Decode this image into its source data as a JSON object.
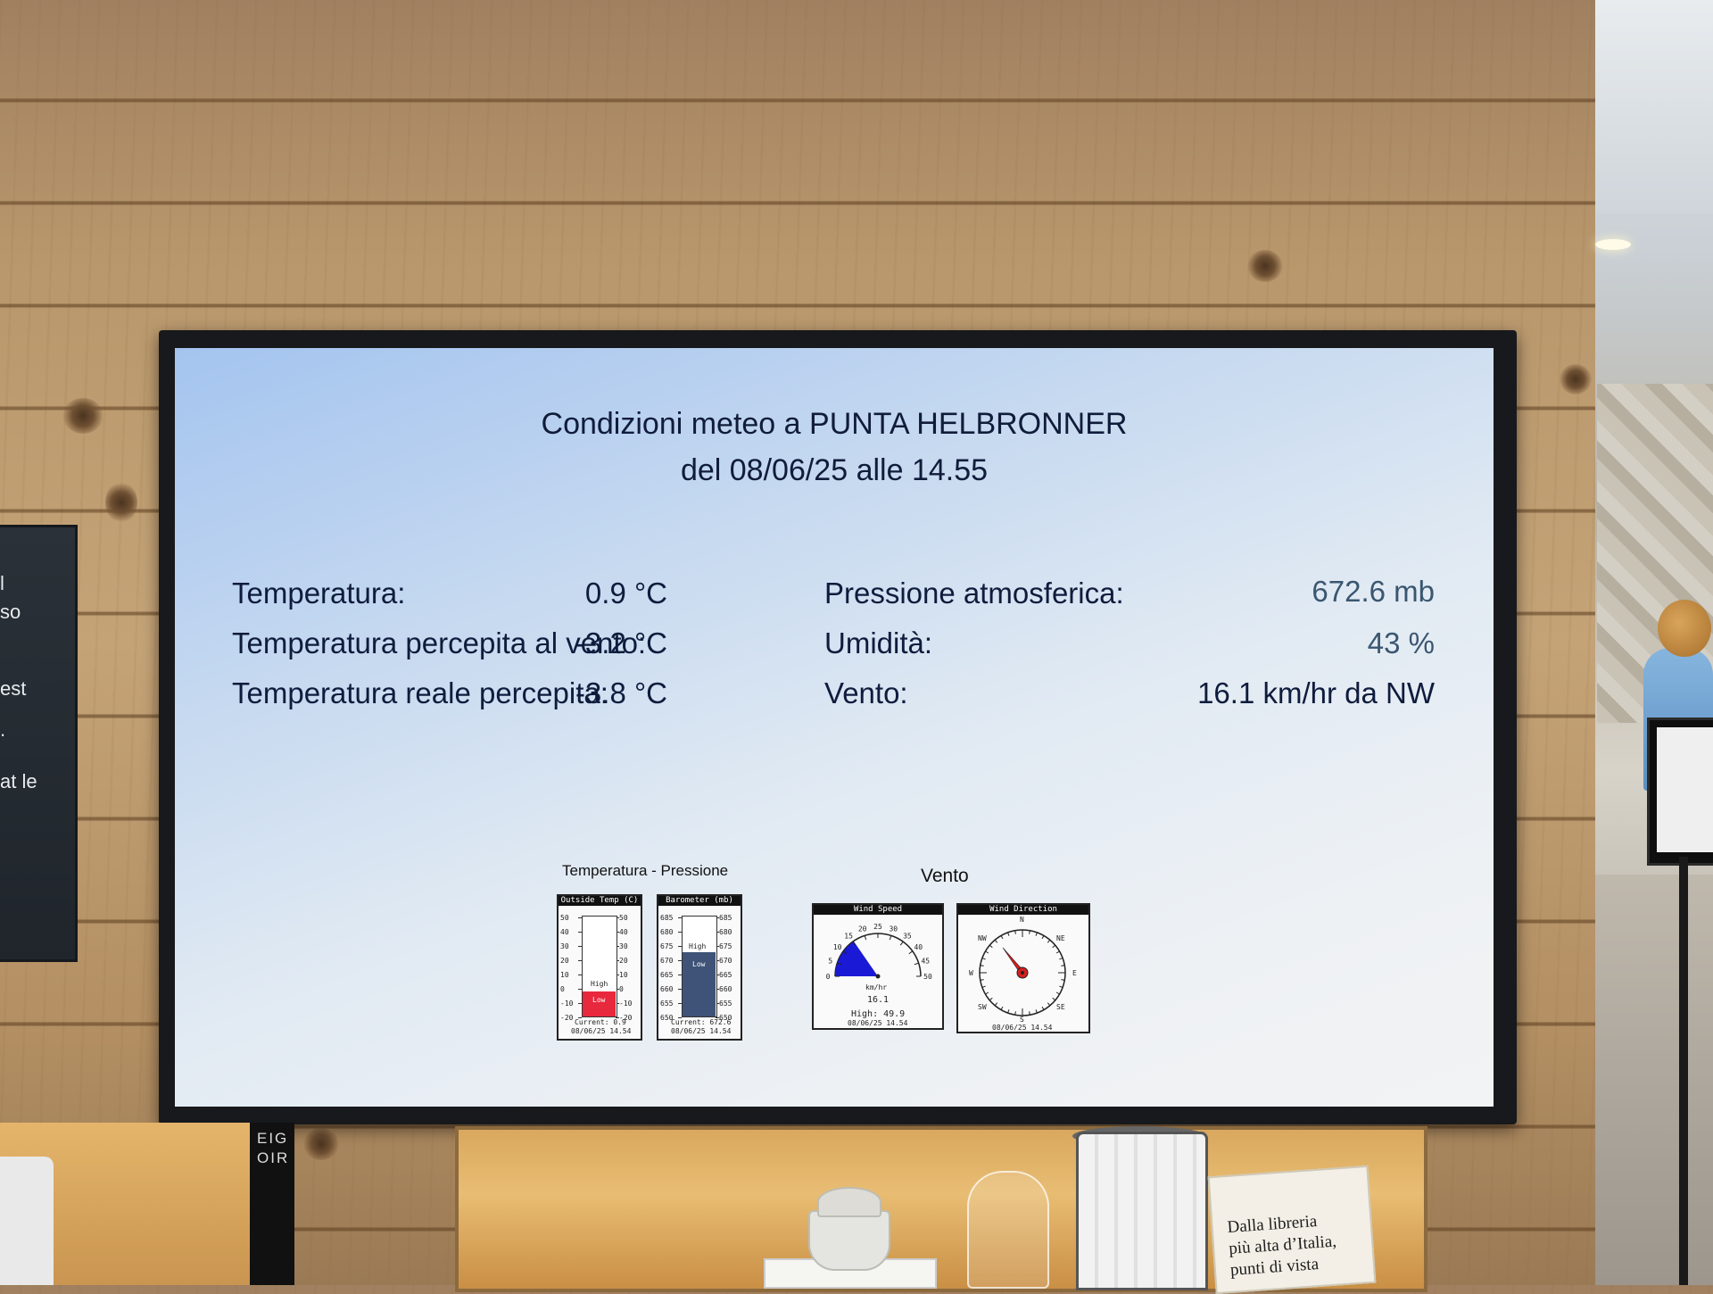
{
  "screen": {
    "title_line1": "Condizioni meteo a PUNTA HELBRONNER",
    "title_line2": "del 08/06/25 alle 14.55",
    "rows_left": [
      {
        "label": "Temperatura:",
        "value": "0.9 °C"
      },
      {
        "label": "Temperatura percepita al vento:",
        "value": "-3.2 °C"
      },
      {
        "label": "Temperatura reale percepita:",
        "value": "-3.8 °C"
      }
    ],
    "rows_right": [
      {
        "label": "Pressione atmosferica:",
        "value": "672.6 mb"
      },
      {
        "label": "Umidità:",
        "value": "43 %"
      },
      {
        "label": "Vento:",
        "value": "16.1 km/hr da NW"
      }
    ],
    "caption_temp_pressure": "Temperatura - Pressione",
    "caption_wind": "Vento"
  },
  "gauges": {
    "temp": {
      "header": "Outside Temp (C)",
      "ticks": [
        "50",
        "40",
        "30",
        "20",
        "10",
        "0",
        "-10",
        "-20"
      ],
      "high_label": "High",
      "low_label": "Low",
      "current": "Current: 0.9",
      "timestamp": "08/06/25 14.54",
      "fill_color": "#e8283c"
    },
    "baro": {
      "header": "Barometer (mb)",
      "ticks": [
        "685",
        "680",
        "675",
        "670",
        "665",
        "660",
        "655",
        "650"
      ],
      "high_label": "High",
      "low_label": "Low",
      "current": "Current: 672.6",
      "timestamp": "08/06/25 14.54",
      "fill_color": "#3e5377"
    },
    "wind_speed": {
      "header": "Wind Speed",
      "ticks": [
        "0",
        "5",
        "10",
        "15",
        "20",
        "25",
        "30",
        "35",
        "40",
        "45",
        "50"
      ],
      "unit": "km/hr",
      "value": "16.1",
      "high": "High: 49.9",
      "timestamp": "08/06/25 14.54",
      "fill_color": "#1a1ad6"
    },
    "wind_direction": {
      "header": "Wind Direction",
      "labels": {
        "n": "N",
        "ne": "NE",
        "e": "E",
        "se": "SE",
        "s": "S",
        "sw": "SW",
        "w": "W",
        "nw": "NW"
      },
      "timestamp": "08/06/25 14.54",
      "needle_color": "#d81e1e"
    }
  },
  "scene": {
    "left_panel_lines": [
      "l",
      "so",
      "est",
      ".",
      "at le"
    ],
    "bottle_lines": [
      "EIG",
      "OIR"
    ],
    "book_lines": [
      "Dalla libreria",
      "più alta d’Italia,",
      "punti di vista"
    ]
  }
}
